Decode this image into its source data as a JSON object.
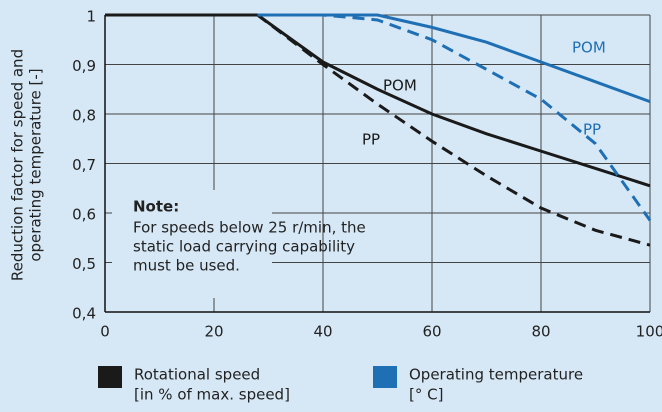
{
  "chart_data": {
    "type": "line",
    "y_label": [
      "Reduction factor for speed and",
      "operating temperature [-]"
    ],
    "x": [
      0,
      28,
      40,
      50,
      60,
      70,
      80,
      90,
      100
    ],
    "series": [
      {
        "name": "POM",
        "color": "#1a1a1a",
        "dashed": false,
        "values": [
          1,
          1,
          0.905,
          0.85,
          0.8,
          0.76,
          0.725,
          0.69,
          0.655
        ]
      },
      {
        "name": "PP",
        "color": "#1a1a1a",
        "dashed": true,
        "values": [
          1,
          1,
          0.9,
          0.82,
          0.745,
          0.675,
          0.61,
          0.565,
          0.535
        ]
      },
      {
        "name": "POM",
        "color": "#1f6fb4",
        "dashed": false,
        "values": [
          null,
          1,
          1,
          1,
          0.975,
          0.945,
          0.905,
          0.865,
          0.825
        ]
      },
      {
        "name": "PP",
        "color": "#1f6fb4",
        "dashed": true,
        "values": [
          null,
          1,
          1,
          0.99,
          0.95,
          0.89,
          0.83,
          0.74,
          0.585
        ]
      }
    ],
    "xlim": [
      0,
      100
    ],
    "xticks": [
      0,
      20,
      40,
      60,
      80,
      100
    ],
    "ylim": [
      0.4,
      1
    ],
    "yticks": [
      {
        "value": 0.4,
        "label": "0,4"
      },
      {
        "value": 0.5,
        "label": "0,5"
      },
      {
        "value": 0.6,
        "label": "0,6"
      },
      {
        "value": 0.7,
        "label": "0,7"
      },
      {
        "value": 0.8,
        "label": "0,8"
      },
      {
        "value": 0.9,
        "label": "0,9"
      },
      1
    ],
    "grid": true,
    "note": {
      "title": "Note:",
      "lines": [
        "For speeds below 25 r/min, the",
        "static load carrying capability",
        "must be used."
      ]
    },
    "legend": [
      {
        "color": "#1a1a1a",
        "lines": [
          "Rotational speed",
          "[in % of max. speed]"
        ]
      },
      {
        "color": "#1f6fb4",
        "lines": [
          "Operating temperature",
          "[° C]"
        ]
      }
    ]
  }
}
